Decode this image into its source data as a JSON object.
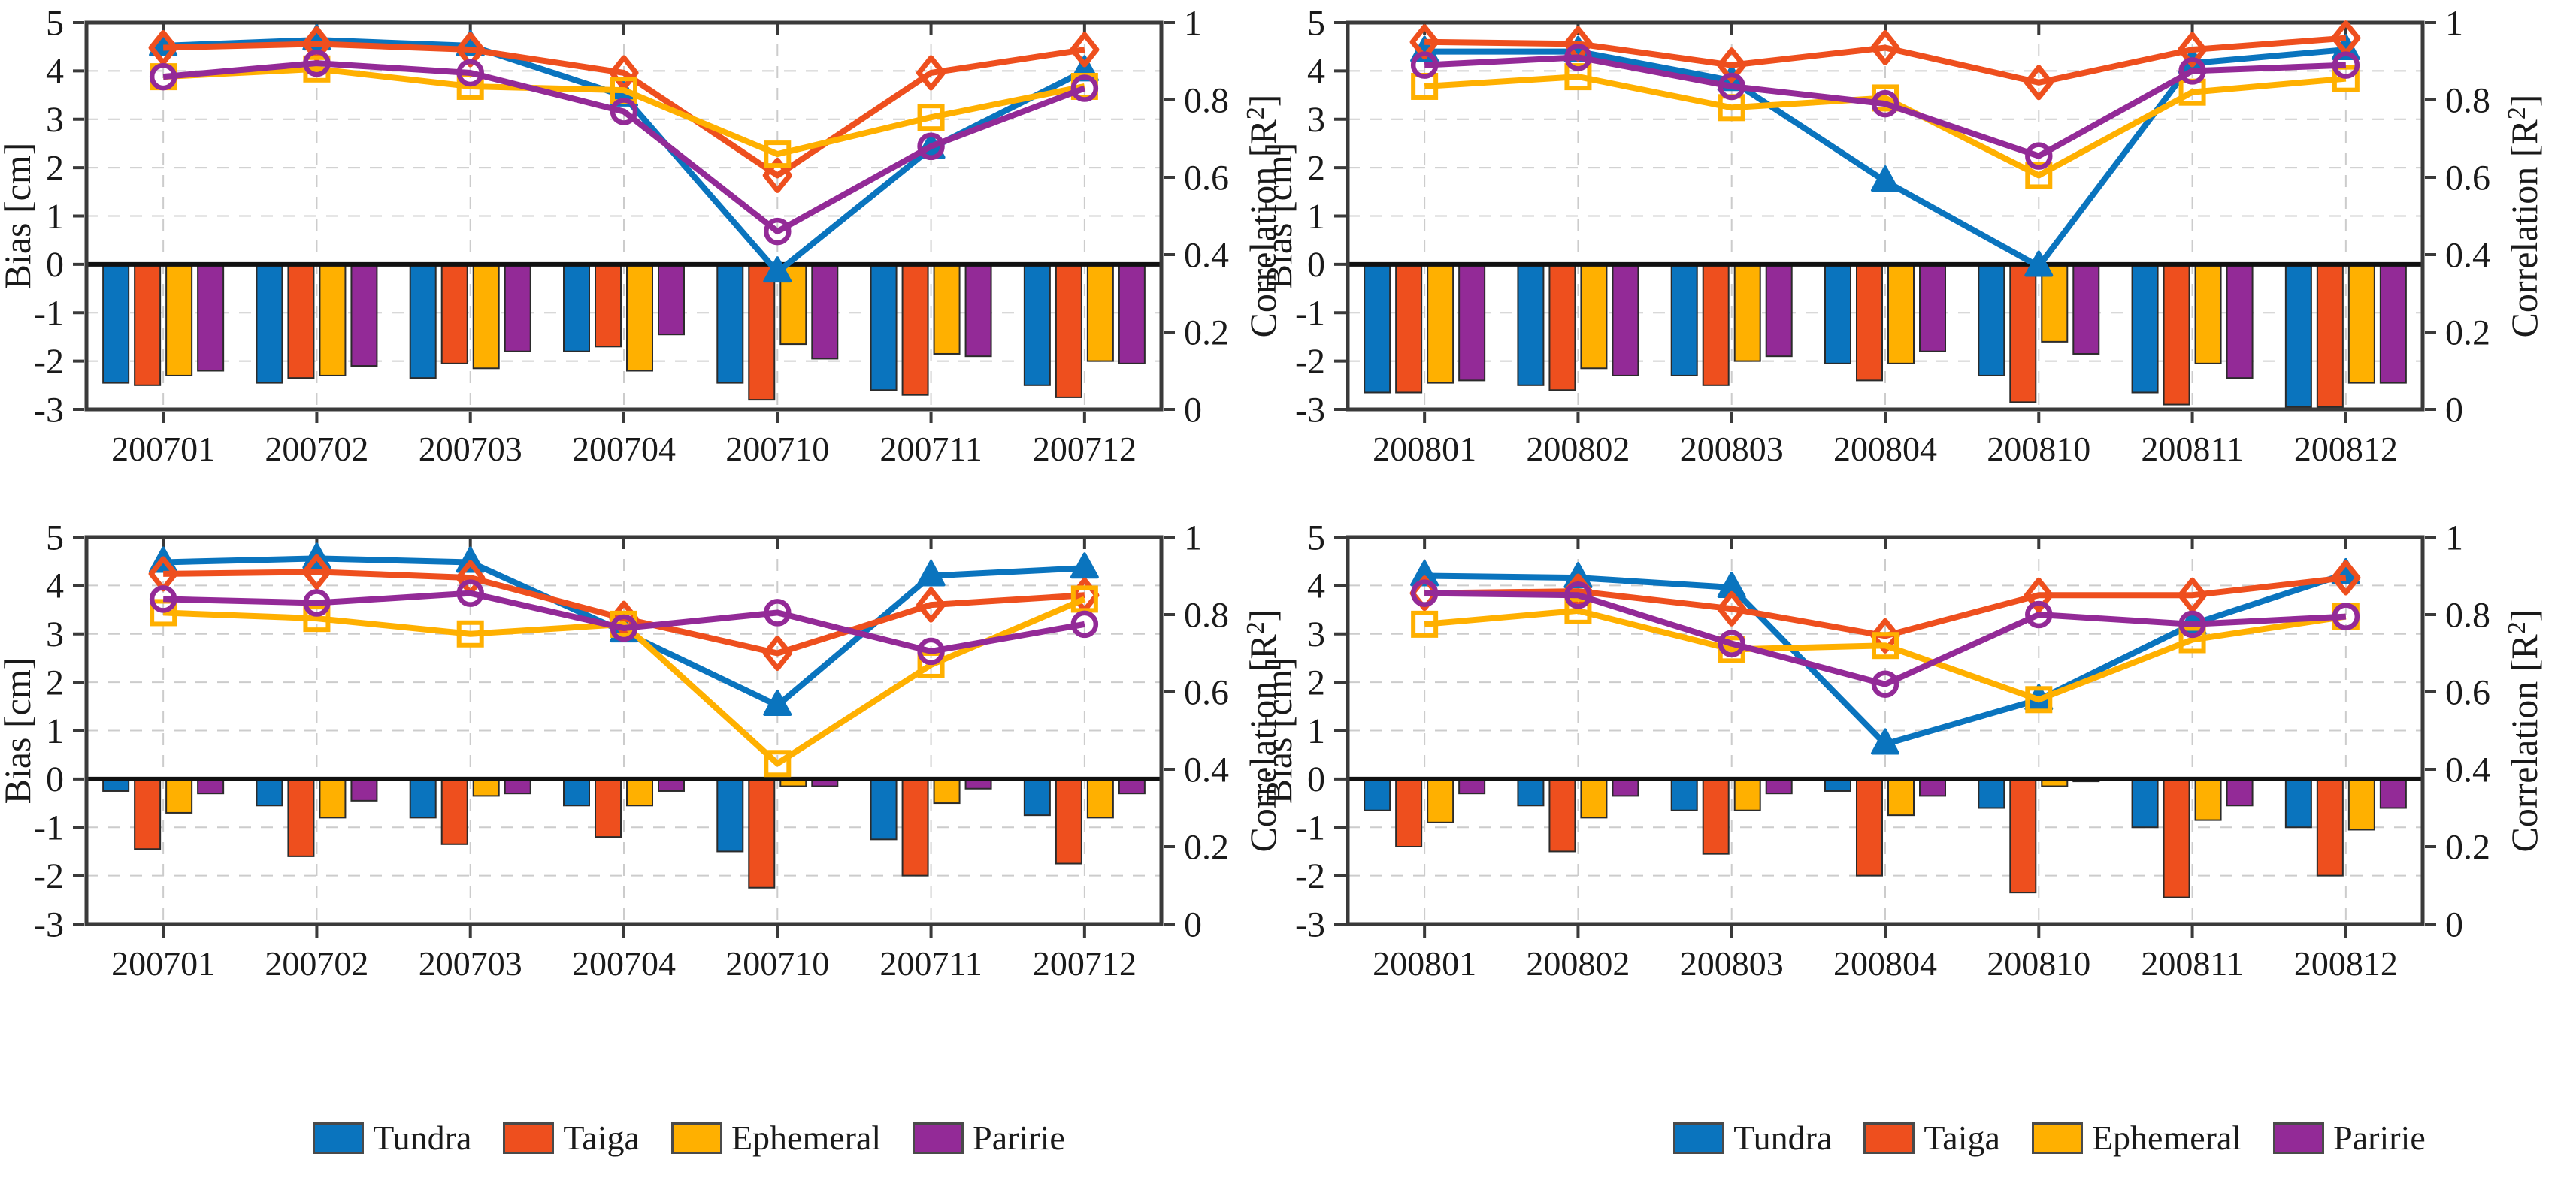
{
  "legend": {
    "items": [
      {
        "label": "Tundra",
        "color": "#0a74be",
        "marker": "triangle"
      },
      {
        "label": "Taiga",
        "color": "#ee4f1e",
        "marker": "diamond"
      },
      {
        "label": "Ephemeral",
        "color": "#ffb000",
        "marker": "square"
      },
      {
        "label": "Paririe",
        "color": "#932a97",
        "marker": "circle"
      }
    ]
  },
  "series_style": [
    {
      "name": "Tundra",
      "color": "#0a74be",
      "marker": "triangle"
    },
    {
      "name": "Taiga",
      "color": "#ee4f1e",
      "marker": "diamond"
    },
    {
      "name": "Ephemeral",
      "color": "#ffb000",
      "marker": "square"
    },
    {
      "name": "Paririe",
      "color": "#932a97",
      "marker": "circle"
    }
  ],
  "chart_data": [
    {
      "id": "top_left",
      "type": "bar",
      "note": "grouped bars = Bias [cm] on left axis; lines with markers = Correlation [R2] on right axis",
      "categories": [
        "200701",
        "200702",
        "200703",
        "200704",
        "200710",
        "200711",
        "200712"
      ],
      "left_axis": {
        "label": "Bias [cm]",
        "min": -3,
        "max": 5,
        "ticks": [
          5,
          4,
          3,
          2,
          1,
          0,
          -1,
          -2,
          -3
        ],
        "gridlines": [
          4,
          3,
          2,
          1,
          -1,
          -2
        ]
      },
      "right_axis": {
        "label": "Correlation [R²]",
        "min": 0,
        "max": 1,
        "ticks": [
          1,
          0.8,
          0.6,
          0.4,
          0.2,
          0
        ]
      },
      "bars_bias_cm": {
        "series": [
          {
            "name": "Tundra",
            "values": [
              -2.45,
              -2.45,
              -2.35,
              -1.8,
              -2.45,
              -2.6,
              -2.5
            ]
          },
          {
            "name": "Taiga",
            "values": [
              -2.5,
              -2.35,
              -2.05,
              -1.7,
              -2.8,
              -2.7,
              -2.75
            ]
          },
          {
            "name": "Ephemeral",
            "values": [
              -2.3,
              -2.3,
              -2.15,
              -2.2,
              -1.65,
              -1.85,
              -2.0
            ]
          },
          {
            "name": "Paririe",
            "values": [
              -2.2,
              -2.1,
              -1.8,
              -1.45,
              -1.95,
              -1.9,
              -2.05
            ]
          }
        ]
      },
      "lines_correlation_r2": {
        "series": [
          {
            "name": "Tundra",
            "values": [
              0.94,
              0.955,
              0.94,
              0.81,
              0.355,
              0.675,
              0.875
            ]
          },
          {
            "name": "Taiga",
            "values": [
              0.935,
              0.945,
              0.93,
              0.87,
              0.605,
              0.87,
              0.93
            ]
          },
          {
            "name": "Ephemeral",
            "values": [
              0.86,
              0.88,
              0.835,
              0.825,
              0.66,
              0.755,
              0.835
            ]
          },
          {
            "name": "Paririe",
            "values": [
              0.86,
              0.895,
              0.87,
              0.77,
              0.46,
              0.68,
              0.83
            ]
          }
        ]
      }
    },
    {
      "id": "top_right",
      "type": "bar",
      "note": "grouped bars = Bias [cm] on left axis; lines with markers = Correlation [R2] on right axis",
      "categories": [
        "200801",
        "200802",
        "200803",
        "200804",
        "200810",
        "200811",
        "200812"
      ],
      "left_axis": {
        "label": "Bias [cm]",
        "min": -3,
        "max": 5,
        "ticks": [
          5,
          4,
          3,
          2,
          1,
          0,
          -1,
          -2,
          -3
        ],
        "gridlines": [
          4,
          3,
          2,
          1,
          -1,
          -2
        ]
      },
      "right_axis": {
        "label": "Correlation [R²]",
        "min": 0,
        "max": 1,
        "ticks": [
          1,
          0.8,
          0.6,
          0.4,
          0.2,
          0
        ]
      },
      "bars_bias_cm": {
        "series": [
          {
            "name": "Tundra",
            "values": [
              -2.65,
              -2.5,
              -2.3,
              -2.05,
              -2.3,
              -2.65,
              -2.95
            ]
          },
          {
            "name": "Taiga",
            "values": [
              -2.65,
              -2.6,
              -2.5,
              -2.4,
              -2.85,
              -2.9,
              -2.95
            ]
          },
          {
            "name": "Ephemeral",
            "values": [
              -2.45,
              -2.15,
              -2.0,
              -2.05,
              -1.6,
              -2.05,
              -2.45
            ]
          },
          {
            "name": "Paririe",
            "values": [
              -2.4,
              -2.3,
              -1.9,
              -1.8,
              -1.85,
              -2.35,
              -2.45
            ]
          }
        ]
      },
      "lines_correlation_r2": {
        "series": [
          {
            "name": "Tundra",
            "values": [
              0.925,
              0.925,
              0.85,
              0.59,
              0.37,
              0.895,
              0.93
            ]
          },
          {
            "name": "Taiga",
            "values": [
              0.95,
              0.945,
              0.89,
              0.935,
              0.845,
              0.93,
              0.96
            ]
          },
          {
            "name": "Ephemeral",
            "values": [
              0.835,
              0.86,
              0.78,
              0.805,
              0.605,
              0.82,
              0.855
            ]
          },
          {
            "name": "Paririe",
            "values": [
              0.89,
              0.91,
              0.835,
              0.79,
              0.655,
              0.875,
              0.89
            ]
          }
        ]
      }
    },
    {
      "id": "bottom_left",
      "type": "bar",
      "note": "grouped bars = Bias [cm] on left axis; lines with markers = Correlation [R2] on right axis",
      "categories": [
        "200701",
        "200702",
        "200703",
        "200704",
        "200710",
        "200711",
        "200712"
      ],
      "left_axis": {
        "label": "Bias [cm]",
        "min": -3,
        "max": 5,
        "ticks": [
          5,
          4,
          3,
          2,
          1,
          0,
          -1,
          -2,
          -3
        ],
        "gridlines": [
          4,
          3,
          2,
          1,
          -1,
          -2
        ]
      },
      "right_axis": {
        "label": "Correlation [R²]",
        "min": 0,
        "max": 1,
        "ticks": [
          1,
          0.8,
          0.6,
          0.4,
          0.2,
          0
        ]
      },
      "bars_bias_cm": {
        "series": [
          {
            "name": "Tundra",
            "values": [
              -0.25,
              -0.55,
              -0.8,
              -0.55,
              -1.5,
              -1.25,
              -0.75
            ]
          },
          {
            "name": "Taiga",
            "values": [
              -1.45,
              -1.6,
              -1.35,
              -1.2,
              -2.25,
              -2.0,
              -1.75
            ]
          },
          {
            "name": "Ephemeral",
            "values": [
              -0.7,
              -0.8,
              -0.35,
              -0.55,
              -0.15,
              -0.5,
              -0.8
            ]
          },
          {
            "name": "Paririe",
            "values": [
              -0.3,
              -0.45,
              -0.3,
              -0.25,
              -0.15,
              -0.2,
              -0.3
            ]
          }
        ]
      },
      "lines_correlation_r2": {
        "series": [
          {
            "name": "Tundra",
            "values": [
              0.935,
              0.945,
              0.935,
              0.755,
              0.565,
              0.9,
              0.92
            ]
          },
          {
            "name": "Taiga",
            "values": [
              0.905,
              0.91,
              0.895,
              0.79,
              0.7,
              0.825,
              0.85
            ]
          },
          {
            "name": "Ephemeral",
            "values": [
              0.805,
              0.79,
              0.75,
              0.775,
              0.415,
              0.67,
              0.84
            ]
          },
          {
            "name": "Paririe",
            "values": [
              0.84,
              0.83,
              0.855,
              0.765,
              0.805,
              0.705,
              0.775
            ]
          }
        ]
      }
    },
    {
      "id": "bottom_right",
      "type": "bar",
      "note": "grouped bars = Bias [cm] on left axis; lines with markers = Correlation [R2] on right axis",
      "categories": [
        "200801",
        "200802",
        "200803",
        "200804",
        "200810",
        "200811",
        "200812"
      ],
      "left_axis": {
        "label": "Bias [cm]",
        "min": -3,
        "max": 5,
        "ticks": [
          5,
          4,
          3,
          2,
          1,
          0,
          -1,
          -2,
          -3
        ],
        "gridlines": [
          4,
          3,
          2,
          1,
          -1,
          -2
        ]
      },
      "right_axis": {
        "label": "Correlation [R²]",
        "min": 0,
        "max": 1,
        "ticks": [
          1,
          0.8,
          0.6,
          0.4,
          0.2,
          0
        ]
      },
      "bars_bias_cm": {
        "series": [
          {
            "name": "Tundra",
            "values": [
              -0.65,
              -0.55,
              -0.65,
              -0.25,
              -0.6,
              -1.0,
              -1.0
            ]
          },
          {
            "name": "Taiga",
            "values": [
              -1.4,
              -1.5,
              -1.55,
              -2.0,
              -2.35,
              -2.45,
              -2.0
            ]
          },
          {
            "name": "Ephemeral",
            "values": [
              -0.9,
              -0.8,
              -0.65,
              -0.75,
              -0.15,
              -0.85,
              -1.05
            ]
          },
          {
            "name": "Paririe",
            "values": [
              -0.3,
              -0.35,
              -0.3,
              -0.35,
              -0.05,
              -0.55,
              -0.6
            ]
          }
        ]
      },
      "lines_correlation_r2": {
        "series": [
          {
            "name": "Tundra",
            "values": [
              0.9,
              0.895,
              0.87,
              0.465,
              0.58,
              0.775,
              0.905
            ]
          },
          {
            "name": "Taiga",
            "values": [
              0.855,
              0.86,
              0.815,
              0.745,
              0.85,
              0.85,
              0.895
            ]
          },
          {
            "name": "Ephemeral",
            "values": [
              0.775,
              0.81,
              0.71,
              0.72,
              0.58,
              0.735,
              0.795
            ]
          },
          {
            "name": "Paririe",
            "values": [
              0.855,
              0.85,
              0.725,
              0.62,
              0.8,
              0.775,
              0.795
            ]
          }
        ]
      }
    }
  ]
}
